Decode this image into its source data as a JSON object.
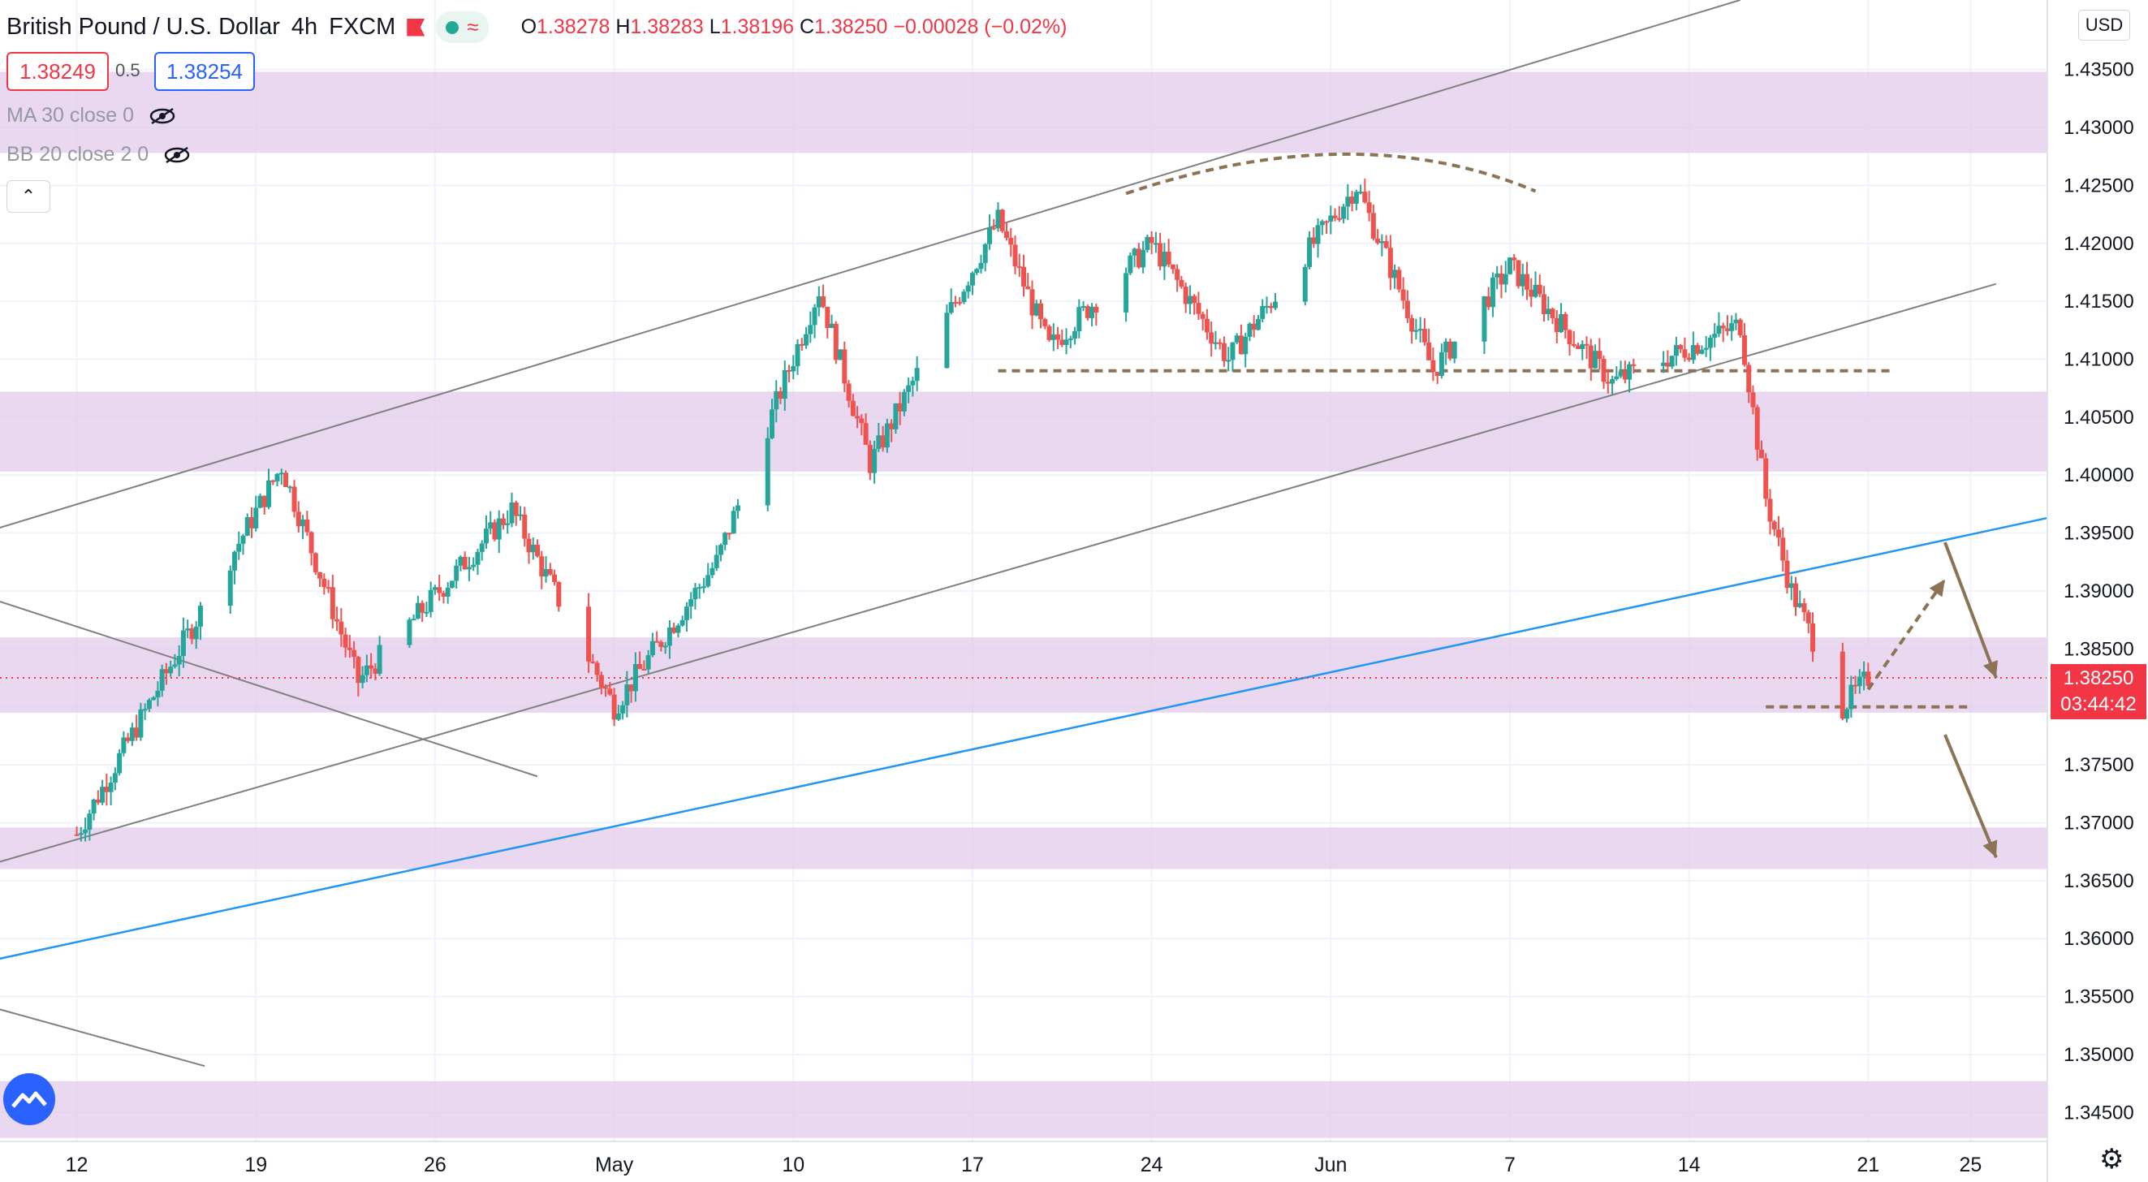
{
  "legend": {
    "symbol": "British Pound / U.S. Dollar",
    "interval": "4h",
    "exchange": "FXCM",
    "ohlc": {
      "o_label": "O",
      "o": "1.38278",
      "h_label": "H",
      "h": "1.38283",
      "l_label": "L",
      "l": "1.38196",
      "c_label": "C",
      "c": "1.38250",
      "change": "−0.00028 (−0.02%)"
    },
    "bid": "1.38249",
    "spread": "0.5",
    "ask": "1.38254",
    "indicators": [
      "MA 30 close 0",
      "BB 20 close 2 0"
    ]
  },
  "price_axis": {
    "currency": "USD",
    "last_price": "1.38250",
    "countdown": "03:44:42"
  },
  "colors": {
    "up": "#26a69a",
    "down": "#ef5350",
    "zone": "#e1c8ea",
    "blue_line": "#2196f3",
    "channel": "#808080",
    "annotation": "#8b7355",
    "price_line": "#f23645"
  },
  "chart_data": {
    "type": "candlestick",
    "title": "British Pound / U.S. Dollar, 4h, FXCM",
    "y_ticks": [
      "1.34500",
      "1.35000",
      "1.35500",
      "1.36000",
      "1.36500",
      "1.37000",
      "1.37500",
      "1.38000",
      "1.38500",
      "1.39000",
      "1.39500",
      "1.40000",
      "1.40500",
      "1.41000",
      "1.41500",
      "1.42000",
      "1.42500",
      "1.43000",
      "1.43500"
    ],
    "x_ticks": [
      "12",
      "19",
      "26",
      "May",
      "10",
      "17",
      "24",
      "Jun",
      "7",
      "14",
      "21",
      "25"
    ],
    "x_tick_values": [
      "2021-04-12",
      "2021-04-19",
      "2021-04-26",
      "2021-05-03",
      "2021-05-10",
      "2021-05-17",
      "2021-05-24",
      "2021-05-31",
      "2021-06-07",
      "2021-06-14",
      "2021-06-21",
      "2021-06-25"
    ],
    "ylim": [
      1.3425,
      1.441
    ],
    "xlim": [
      "2021-04-09",
      "2021-06-28"
    ],
    "supply_demand_zones": [
      [
        1.4278,
        1.4348
      ],
      [
        1.4003,
        1.4072
      ],
      [
        1.3795,
        1.386
      ],
      [
        1.366,
        1.3696
      ],
      [
        1.3428,
        1.3477
      ]
    ],
    "key_points": [
      {
        "date": "2021-04-12",
        "price": 1.369
      },
      {
        "date": "2021-04-20",
        "price": 1.4008
      },
      {
        "date": "2021-04-23",
        "price": 1.3822
      },
      {
        "date": "2021-04-29",
        "price": 1.397
      },
      {
        "date": "2021-05-03",
        "price": 1.38
      },
      {
        "date": "2021-05-07",
        "price": 1.3925
      },
      {
        "date": "2021-05-11",
        "price": 1.416
      },
      {
        "date": "2021-05-13",
        "price": 1.401
      },
      {
        "date": "2021-05-18",
        "price": 1.422
      },
      {
        "date": "2021-05-20",
        "price": 1.411
      },
      {
        "date": "2021-05-24",
        "price": 1.42
      },
      {
        "date": "2021-05-27",
        "price": 1.41
      },
      {
        "date": "2021-06-01",
        "price": 1.425
      },
      {
        "date": "2021-06-04",
        "price": 1.409
      },
      {
        "date": "2021-06-07",
        "price": 1.418
      },
      {
        "date": "2021-06-11",
        "price": 1.408
      },
      {
        "date": "2021-06-14",
        "price": 1.411
      },
      {
        "date": "2021-06-16",
        "price": 1.413
      },
      {
        "date": "2021-06-17",
        "price": 1.398
      },
      {
        "date": "2021-06-18",
        "price": 1.39
      },
      {
        "date": "2021-06-20",
        "price": 1.38
      },
      {
        "date": "2021-06-21",
        "price": 1.3825
      }
    ],
    "lines": [
      {
        "kind": "channel-upper",
        "from": [
          "2021-04-08",
          1.3948
        ],
        "to": [
          "2021-06-16",
          1.441
        ]
      },
      {
        "kind": "channel-lower",
        "from": [
          "2021-04-08",
          1.366
        ],
        "to": [
          "2021-06-26",
          1.4165
        ]
      },
      {
        "kind": "descending-trend",
        "from": [
          "2021-04-08",
          1.3898
        ],
        "to": [
          "2021-04-30",
          1.374
        ]
      },
      {
        "kind": "descending-trend",
        "from": [
          "2021-04-08",
          1.3545
        ],
        "to": [
          "2021-04-17",
          1.349
        ]
      },
      {
        "kind": "blue-trendline",
        "from": [
          "2021-04-08",
          1.3578
        ],
        "to": [
          "2021-06-28",
          1.3963
        ]
      },
      {
        "kind": "support-dashed",
        "from": [
          "2021-05-18",
          1.409
        ],
        "to": [
          "2021-06-22",
          1.409
        ]
      },
      {
        "kind": "support-dashed",
        "from": [
          "2021-06-17",
          1.38
        ],
        "to": [
          "2021-06-25",
          1.38
        ]
      }
    ]
  }
}
